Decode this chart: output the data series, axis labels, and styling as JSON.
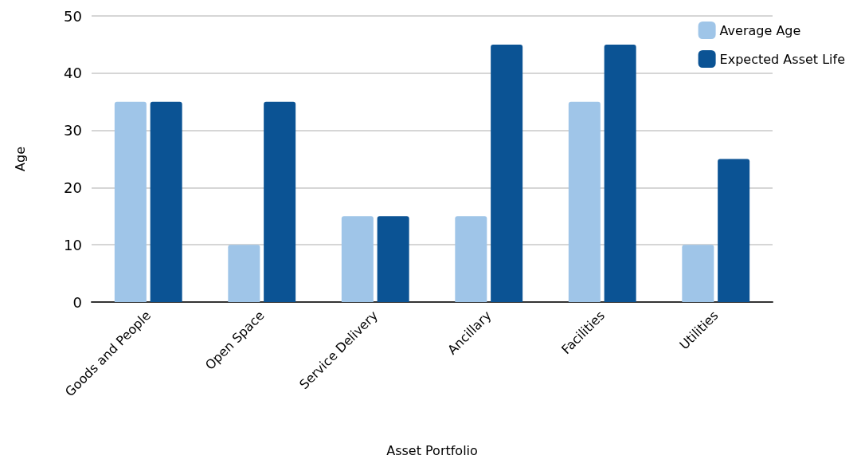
{
  "chart_data": {
    "type": "bar",
    "xlabel": "Asset Portfolio",
    "ylabel": "Age",
    "categories": [
      "Goods and People",
      "Open Space",
      "Service Delivery",
      "Ancillary",
      "Facilities",
      "Utilities"
    ],
    "series": [
      {
        "name": "Average Age",
        "color": "#9fc5e8",
        "values": [
          35,
          10,
          15,
          15,
          35,
          10
        ]
      },
      {
        "name": "Expected Asset Life",
        "color": "#0b5394",
        "values": [
          35,
          35,
          15,
          45,
          45,
          25
        ]
      }
    ],
    "ylim": [
      0,
      50
    ],
    "yticks": [
      0,
      10,
      20,
      30,
      40,
      50
    ],
    "grid": "y",
    "legend": "top right"
  }
}
